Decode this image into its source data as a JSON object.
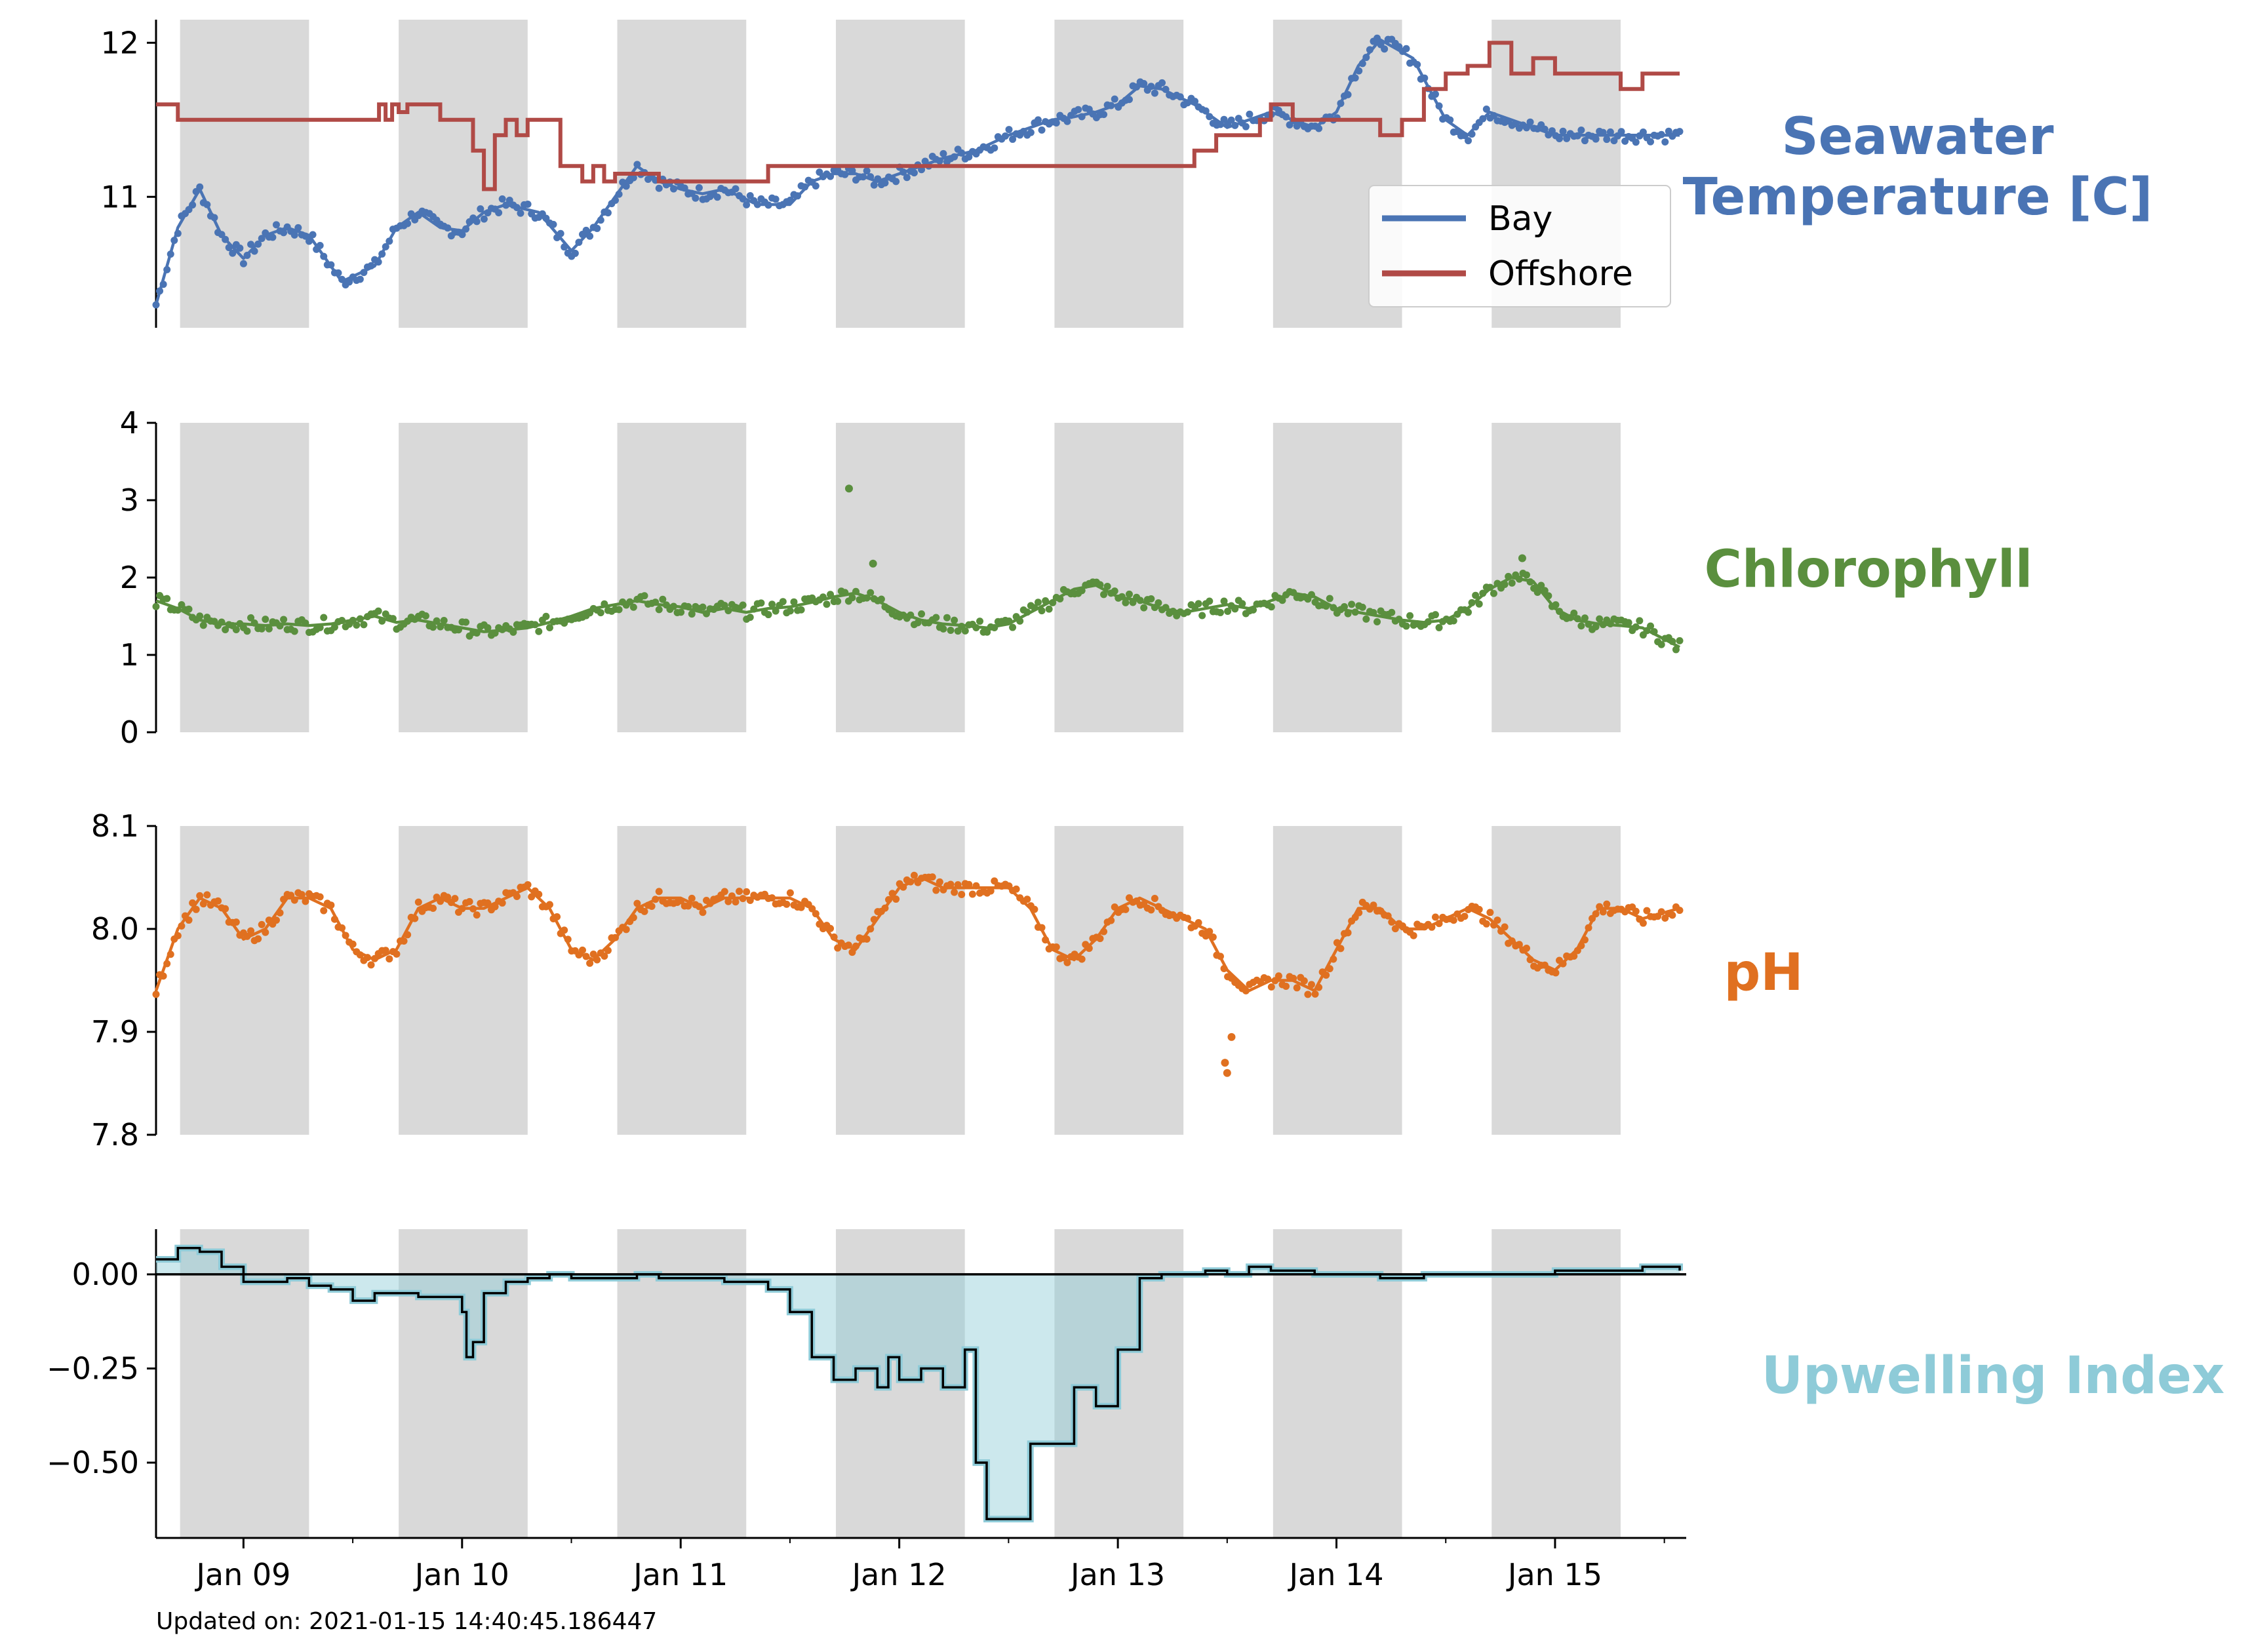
{
  "footer": "Updated on: 2021-01-15 14:40:45.186447",
  "x_axis": {
    "range": [
      8.6,
      15.6
    ],
    "ticks": [
      {
        "label": "Jan 09",
        "x": 9.0
      },
      {
        "label": "Jan 10",
        "x": 10.0
      },
      {
        "label": "Jan 11",
        "x": 11.0
      },
      {
        "label": "Jan 12",
        "x": 12.0
      },
      {
        "label": "Jan 13",
        "x": 13.0
      },
      {
        "label": "Jan 14",
        "x": 14.0
      },
      {
        "label": "Jan 15",
        "x": 15.0
      }
    ],
    "minor_ticks": [
      9.5,
      10.5,
      11.5,
      12.5,
      13.5,
      14.5,
      15.5
    ]
  },
  "night_shading": [
    [
      8.71,
      9.3
    ],
    [
      9.71,
      10.3
    ],
    [
      10.71,
      11.3
    ],
    [
      11.71,
      12.3
    ],
    [
      12.71,
      13.3
    ],
    [
      13.71,
      14.3
    ],
    [
      14.71,
      15.3
    ]
  ],
  "colors": {
    "temperature": "#4a74b4",
    "offshore": "#b04a46",
    "chlorophyll": "#5a8f3e",
    "ph": "#e07020",
    "upwelling": "#8ecbd8",
    "night": "#d9d9d9"
  },
  "chart_data": [
    {
      "type": "line",
      "title": "Seawater\nTemperature [C]",
      "ylim": [
        10.15,
        12.15
      ],
      "yticks": [
        "11",
        "12"
      ],
      "legend": {
        "placement": "right",
        "entries": [
          "Bay",
          "Offshore"
        ]
      },
      "series": [
        {
          "name": "Bay",
          "kind": "scatter+smooth",
          "x": [
            8.6,
            8.7,
            8.8,
            8.9,
            9.0,
            9.1,
            9.2,
            9.3,
            9.45,
            9.6,
            9.7,
            9.8,
            9.9,
            10.0,
            10.1,
            10.2,
            10.35,
            10.5,
            10.6,
            10.7,
            10.8,
            10.9,
            11.0,
            11.1,
            11.2,
            11.35,
            11.5,
            11.6,
            11.7,
            11.8,
            11.9,
            12.0,
            12.1,
            12.2,
            12.35,
            12.5,
            12.6,
            12.7,
            12.8,
            12.9,
            13.0,
            13.1,
            13.2,
            13.35,
            13.5,
            13.6,
            13.7,
            13.8,
            13.9,
            14.0,
            14.1,
            14.2,
            14.35,
            14.5,
            14.6,
            14.7,
            14.8,
            14.9,
            15.0,
            15.1,
            15.2,
            15.35,
            15.5,
            15.57
          ],
          "values": [
            10.3,
            10.8,
            11.05,
            10.75,
            10.6,
            10.75,
            10.8,
            10.75,
            10.45,
            10.55,
            10.8,
            10.9,
            10.8,
            10.78,
            10.9,
            10.95,
            10.9,
            10.65,
            10.8,
            11.0,
            11.2,
            11.1,
            11.05,
            11.02,
            11.05,
            10.95,
            10.95,
            11.1,
            11.15,
            11.15,
            11.1,
            11.15,
            11.2,
            11.25,
            11.3,
            11.4,
            11.45,
            11.5,
            11.52,
            11.55,
            11.6,
            11.72,
            11.7,
            11.6,
            11.45,
            11.5,
            11.55,
            11.5,
            11.45,
            11.55,
            11.85,
            12.02,
            11.9,
            11.5,
            11.4,
            11.55,
            11.5,
            11.45,
            11.4,
            11.4,
            11.4,
            11.4,
            11.4,
            11.4
          ]
        },
        {
          "name": "Offshore",
          "kind": "step",
          "x": [
            8.6,
            8.7,
            9.6,
            9.62,
            9.65,
            9.68,
            9.71,
            9.75,
            9.9,
            10.05,
            10.1,
            10.15,
            10.2,
            10.25,
            10.3,
            10.45,
            10.55,
            10.6,
            10.65,
            10.7,
            10.9,
            11.0,
            11.4,
            12.0,
            12.5,
            13.0,
            13.35,
            13.45,
            13.55,
            13.65,
            13.7,
            13.8,
            13.9,
            14.0,
            14.1,
            14.2,
            14.3,
            14.4,
            14.5,
            14.6,
            14.7,
            14.8,
            14.9,
            15.0,
            15.1,
            15.2,
            15.3,
            15.4,
            15.57
          ],
          "values": [
            11.6,
            11.5,
            11.5,
            11.6,
            11.5,
            11.6,
            11.55,
            11.6,
            11.5,
            11.3,
            11.05,
            11.4,
            11.5,
            11.4,
            11.5,
            11.2,
            11.1,
            11.2,
            11.1,
            11.15,
            11.1,
            11.1,
            11.2,
            11.2,
            11.2,
            11.2,
            11.3,
            11.4,
            11.4,
            11.5,
            11.6,
            11.5,
            11.5,
            11.5,
            11.5,
            11.4,
            11.5,
            11.7,
            11.8,
            11.85,
            12.0,
            11.8,
            11.9,
            11.8,
            11.8,
            11.8,
            11.7,
            11.8,
            11.8
          ]
        }
      ]
    },
    {
      "type": "line",
      "title": "Chlorophyll",
      "ylim": [
        0,
        4
      ],
      "yticks": [
        "0",
        "1",
        "2",
        "3",
        "4"
      ],
      "series": [
        {
          "kind": "scatter+smooth",
          "x": [
            8.6,
            8.7,
            8.8,
            8.9,
            9.0,
            9.1,
            9.2,
            9.3,
            9.4,
            9.5,
            9.6,
            9.7,
            9.8,
            9.9,
            10.0,
            10.1,
            10.2,
            10.3,
            10.4,
            10.5,
            10.6,
            10.7,
            10.8,
            10.9,
            11.0,
            11.1,
            11.2,
            11.3,
            11.4,
            11.5,
            11.6,
            11.7,
            11.8,
            11.9,
            12.0,
            12.1,
            12.2,
            12.3,
            12.4,
            12.5,
            12.6,
            12.7,
            12.8,
            12.9,
            13.0,
            13.1,
            13.2,
            13.3,
            13.4,
            13.5,
            13.6,
            13.7,
            13.8,
            13.9,
            14.0,
            14.1,
            14.2,
            14.3,
            14.4,
            14.5,
            14.6,
            14.7,
            14.8,
            14.9,
            15.0,
            15.1,
            15.2,
            15.3,
            15.4,
            15.57
          ],
          "values": [
            1.7,
            1.6,
            1.45,
            1.4,
            1.4,
            1.38,
            1.4,
            1.38,
            1.4,
            1.45,
            1.5,
            1.42,
            1.45,
            1.4,
            1.35,
            1.3,
            1.32,
            1.35,
            1.42,
            1.5,
            1.6,
            1.65,
            1.7,
            1.65,
            1.62,
            1.55,
            1.6,
            1.55,
            1.6,
            1.62,
            1.68,
            1.75,
            1.8,
            1.7,
            1.55,
            1.45,
            1.4,
            1.38,
            1.35,
            1.4,
            1.55,
            1.7,
            1.85,
            1.9,
            1.75,
            1.7,
            1.6,
            1.55,
            1.6,
            1.65,
            1.6,
            1.7,
            1.8,
            1.75,
            1.6,
            1.55,
            1.5,
            1.45,
            1.42,
            1.45,
            1.6,
            1.85,
            2.0,
            1.95,
            1.6,
            1.45,
            1.4,
            1.38,
            1.35,
            1.1
          ],
          "outliers": [
            {
              "x": 11.77,
              "y": 3.15
            },
            {
              "x": 11.88,
              "y": 2.18
            },
            {
              "x": 14.85,
              "y": 2.25
            }
          ]
        }
      ]
    },
    {
      "type": "line",
      "title": "pH",
      "ylim": [
        7.8,
        8.1
      ],
      "yticks": [
        "7.8",
        "7.9",
        "8.0",
        "8.1"
      ],
      "series": [
        {
          "kind": "scatter+smooth",
          "x": [
            8.6,
            8.7,
            8.8,
            8.9,
            9.0,
            9.1,
            9.2,
            9.3,
            9.4,
            9.5,
            9.6,
            9.7,
            9.8,
            9.9,
            10.0,
            10.1,
            10.2,
            10.3,
            10.4,
            10.5,
            10.6,
            10.7,
            10.8,
            10.9,
            11.0,
            11.1,
            11.2,
            11.3,
            11.4,
            11.5,
            11.6,
            11.7,
            11.8,
            11.9,
            12.0,
            12.1,
            12.2,
            12.3,
            12.4,
            12.5,
            12.6,
            12.7,
            12.8,
            12.9,
            13.0,
            13.1,
            13.2,
            13.3,
            13.4,
            13.5,
            13.6,
            13.7,
            13.8,
            13.9,
            14.0,
            14.1,
            14.2,
            14.3,
            14.4,
            14.5,
            14.6,
            14.7,
            14.8,
            14.9,
            15.0,
            15.1,
            15.2,
            15.3,
            15.4,
            15.57
          ],
          "values": [
            7.94,
            8.0,
            8.03,
            8.02,
            7.99,
            8.0,
            8.03,
            8.03,
            8.02,
            7.98,
            7.97,
            7.98,
            8.02,
            8.03,
            8.02,
            8.02,
            8.03,
            8.04,
            8.02,
            7.98,
            7.97,
            7.99,
            8.02,
            8.03,
            8.03,
            8.02,
            8.03,
            8.03,
            8.03,
            8.03,
            8.02,
            7.99,
            7.98,
            8.01,
            8.04,
            8.05,
            8.04,
            8.04,
            8.04,
            8.04,
            8.02,
            7.98,
            7.97,
            7.99,
            8.02,
            8.03,
            8.02,
            8.01,
            8.0,
            7.96,
            7.94,
            7.95,
            7.95,
            7.94,
            7.98,
            8.02,
            8.02,
            8.0,
            8.0,
            8.01,
            8.02,
            8.01,
            7.99,
            7.97,
            7.96,
            7.98,
            8.02,
            8.02,
            8.01,
            8.02
          ],
          "outliers": [
            {
              "x": 13.49,
              "y": 7.87
            },
            {
              "x": 13.52,
              "y": 7.895
            },
            {
              "x": 13.5,
              "y": 7.86
            }
          ]
        }
      ]
    },
    {
      "type": "area",
      "title": "Upwelling Index",
      "ylim": [
        -0.7,
        0.12
      ],
      "yticks": [
        "−0.50",
        "−0.25",
        "0.00"
      ],
      "series": [
        {
          "kind": "step-fill",
          "x": [
            8.6,
            8.7,
            8.8,
            8.9,
            9.0,
            9.1,
            9.2,
            9.3,
            9.4,
            9.5,
            9.6,
            9.7,
            9.8,
            9.9,
            10.0,
            10.02,
            10.05,
            10.1,
            10.2,
            10.3,
            10.4,
            10.5,
            10.6,
            10.7,
            10.8,
            10.9,
            11.0,
            11.1,
            11.2,
            11.3,
            11.4,
            11.5,
            11.6,
            11.7,
            11.8,
            11.9,
            11.95,
            12.0,
            12.1,
            12.2,
            12.3,
            12.35,
            12.4,
            12.5,
            12.6,
            12.7,
            12.8,
            12.9,
            13.0,
            13.1,
            13.2,
            13.3,
            13.4,
            13.5,
            13.6,
            13.7,
            13.8,
            13.9,
            14.0,
            14.2,
            14.4,
            14.6,
            14.8,
            15.0,
            15.2,
            15.4,
            15.57
          ],
          "values": [
            0.04,
            0.07,
            0.06,
            0.02,
            -0.02,
            -0.02,
            -0.01,
            -0.03,
            -0.04,
            -0.07,
            -0.05,
            -0.05,
            -0.06,
            -0.06,
            -0.1,
            -0.22,
            -0.18,
            -0.05,
            -0.02,
            -0.01,
            0.0,
            -0.01,
            -0.01,
            -0.01,
            0.0,
            -0.01,
            -0.01,
            -0.01,
            -0.02,
            -0.02,
            -0.04,
            -0.1,
            -0.22,
            -0.28,
            -0.25,
            -0.3,
            -0.22,
            -0.28,
            -0.25,
            -0.3,
            -0.2,
            -0.5,
            -0.65,
            -0.65,
            -0.45,
            -0.45,
            -0.3,
            -0.35,
            -0.2,
            -0.01,
            0.0,
            0.0,
            0.01,
            0.0,
            0.02,
            0.01,
            0.01,
            0.0,
            0.0,
            -0.01,
            0.0,
            0.0,
            0.0,
            0.01,
            0.01,
            0.02,
            0.01
          ]
        }
      ]
    }
  ]
}
